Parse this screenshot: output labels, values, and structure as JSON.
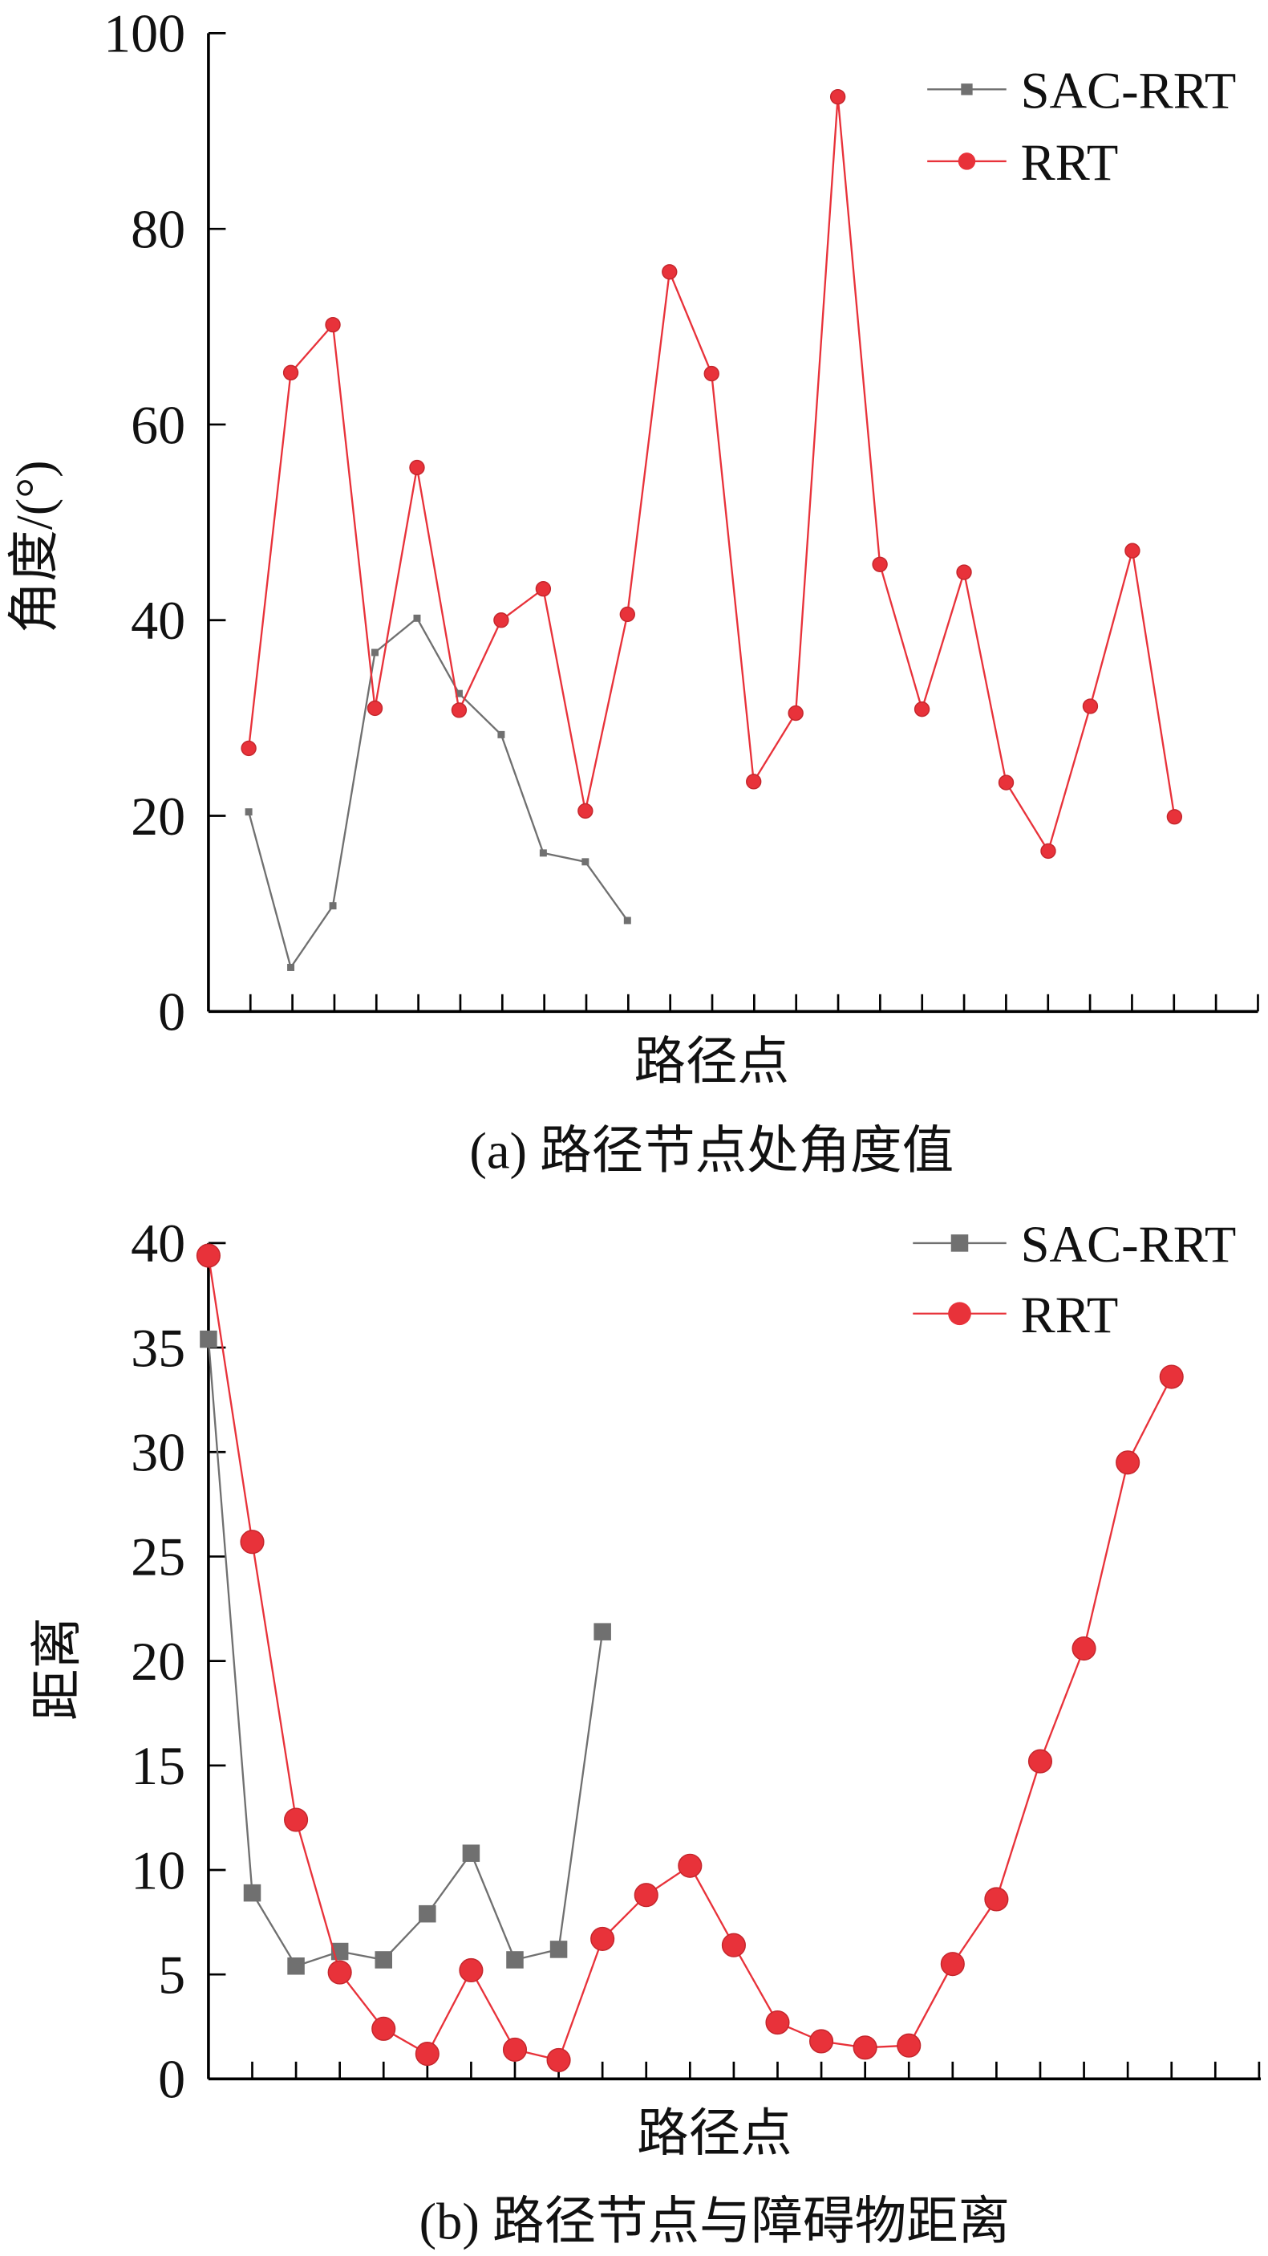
{
  "chart_data": [
    {
      "type": "line",
      "caption": "(a) 路径节点处角度值",
      "xlabel": "路径点",
      "ylabel": "角度/(°)",
      "ylim": [
        0,
        100
      ],
      "yticks": [
        "0",
        "20",
        "40",
        "60",
        "80",
        "100"
      ],
      "legend_position": "top-right",
      "series": [
        {
          "name": "SAC-RRT",
          "color": "#707070",
          "marker": "square",
          "values": [
            20.4,
            4.5,
            10.8,
            36.7,
            40.2,
            32.5,
            28.3,
            16.2,
            15.3,
            9.3
          ]
        },
        {
          "name": "RRT",
          "color": "#e8323a",
          "marker": "circle",
          "values": [
            26.9,
            65.3,
            70.2,
            31.0,
            55.6,
            30.8,
            40.0,
            43.2,
            20.5,
            40.6,
            75.6,
            65.2,
            23.5,
            30.5,
            93.5,
            45.7,
            30.9,
            44.9,
            23.4,
            16.4,
            31.2,
            47.1,
            19.9
          ]
        }
      ]
    },
    {
      "type": "line",
      "caption": "(b) 路径节点与障碍物距离",
      "xlabel": "路径点",
      "ylabel": "距离",
      "ylim": [
        0,
        40
      ],
      "yticks": [
        "0",
        "5",
        "10",
        "15",
        "20",
        "25",
        "30",
        "35",
        "40"
      ],
      "legend_position": "top-right",
      "series": [
        {
          "name": "SAC-RRT",
          "color": "#707070",
          "marker": "square",
          "values": [
            35.4,
            8.9,
            5.4,
            6.1,
            5.7,
            7.9,
            10.8,
            5.7,
            6.2,
            21.4
          ]
        },
        {
          "name": "RRT",
          "color": "#e8323a",
          "marker": "circle",
          "values": [
            39.4,
            25.7,
            12.4,
            5.1,
            2.4,
            1.2,
            5.2,
            1.4,
            0.9,
            6.7,
            8.8,
            10.2,
            6.4,
            2.7,
            1.8,
            1.5,
            1.6,
            5.5,
            8.6,
            15.2,
            20.6,
            29.5,
            33.6
          ]
        }
      ]
    }
  ]
}
